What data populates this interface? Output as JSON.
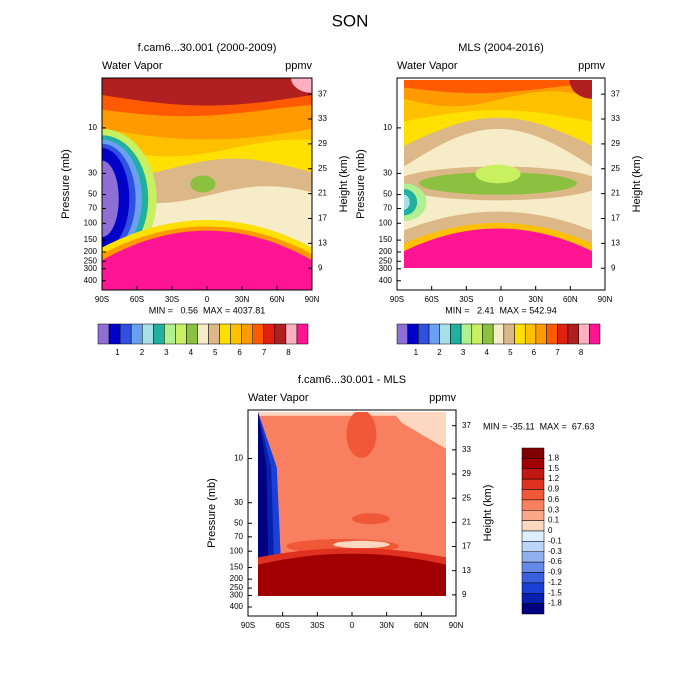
{
  "page_title": "SON",
  "chart_data": [
    {
      "type": "contour",
      "title": "f.cam6...30.001 (2000-2009)",
      "left_string": "Water Vapor",
      "right_string": "ppmv",
      "ylabel": "Pressure (mb)",
      "y2label": "Height (km)",
      "xlim": [
        -90,
        90
      ],
      "xticks": [
        {
          "value": -90,
          "label": "90S"
        },
        {
          "value": -60,
          "label": "60S"
        },
        {
          "value": -30,
          "label": "30S"
        },
        0,
        {
          "value": 30,
          "label": "30N"
        },
        {
          "value": 60,
          "label": "60N"
        },
        {
          "value": 90,
          "label": "90N"
        }
      ],
      "ylim": [
        500,
        3
      ],
      "log_y": true,
      "yticks": [
        10,
        30,
        50,
        70,
        100,
        150,
        200,
        250,
        300,
        400
      ],
      "y2lim": [
        5.5,
        39.6
      ],
      "y2ticks": [
        37,
        33,
        29,
        25,
        21,
        17,
        13,
        9
      ],
      "stats": "MIN =   0.56  MAX = 4037.81",
      "colorbar": {
        "orientation": "horizontal",
        "colors": [
          "#8e6fd6",
          "#0000c8",
          "#3050e0",
          "#6aa0f0",
          "#a8e0e8",
          "#20b0a0",
          "#b0f090",
          "#c8f060",
          "#8cc040",
          "#f6ecc8",
          "#dcb888",
          "#ffe000",
          "#ffc000",
          "#ff9a00",
          "#ff5a00",
          "#e02010",
          "#b02020",
          "#ffb0c0",
          "#ff1493"
        ],
        "labels": [
          1,
          2,
          3,
          4,
          5,
          6,
          7,
          8
        ]
      }
    },
    {
      "type": "contour",
      "title": "MLS (2004-2016)",
      "left_string": "Water Vapor",
      "right_string": "ppmv",
      "ylabel": "Pressure (mb)",
      "y2label": "Height (km)",
      "xlim": [
        -90,
        90
      ],
      "xticks": [
        {
          "value": -90,
          "label": "90S"
        },
        {
          "value": -60,
          "label": "60S"
        },
        {
          "value": -30,
          "label": "30S"
        },
        0,
        {
          "value": 30,
          "label": "30N"
        },
        {
          "value": 60,
          "label": "60N"
        },
        {
          "value": 90,
          "label": "90N"
        }
      ],
      "ylim": [
        500,
        3
      ],
      "log_y": true,
      "yticks": [
        10,
        30,
        50,
        70,
        100,
        150,
        200,
        250,
        300,
        400
      ],
      "y2lim": [
        5.5,
        39.6
      ],
      "y2ticks": [
        37,
        33,
        29,
        25,
        21,
        17,
        13,
        9
      ],
      "stats": "MIN =   2.41  MAX = 542.94",
      "colorbar": {
        "orientation": "horizontal",
        "colors": [
          "#8e6fd6",
          "#0000c8",
          "#3050e0",
          "#6aa0f0",
          "#a8e0e8",
          "#20b0a0",
          "#b0f090",
          "#c8f060",
          "#8cc040",
          "#f6ecc8",
          "#dcb888",
          "#ffe000",
          "#ffc000",
          "#ff9a00",
          "#ff5a00",
          "#e02010",
          "#b02020",
          "#ffb0c0",
          "#ff1493"
        ],
        "labels": [
          1,
          2,
          3,
          4,
          5,
          6,
          7,
          8
        ]
      }
    },
    {
      "type": "contour",
      "title": "f.cam6...30.001 - MLS",
      "left_string": "Water Vapor",
      "right_string": "ppmv",
      "ylabel": "Pressure (mb)",
      "y2label": "Height (km)",
      "xlim": [
        -90,
        90
      ],
      "xticks": [
        {
          "value": -90,
          "label": "90S"
        },
        {
          "value": -60,
          "label": "60S"
        },
        {
          "value": -30,
          "label": "30S"
        },
        0,
        {
          "value": 30,
          "label": "30N"
        },
        {
          "value": 60,
          "label": "60N"
        },
        {
          "value": 90,
          "label": "90N"
        }
      ],
      "ylim": [
        500,
        3
      ],
      "log_y": true,
      "yticks": [
        10,
        30,
        50,
        70,
        100,
        150,
        200,
        250,
        300,
        400
      ],
      "y2lim": [
        5.5,
        39.6
      ],
      "y2ticks": [
        37,
        33,
        29,
        25,
        21,
        17,
        13,
        9
      ],
      "stats": "MIN = -35.11  MAX =  67.63",
      "colorbar": {
        "orientation": "vertical",
        "colors": [
          "#800000",
          "#a00000",
          "#c01810",
          "#e03020",
          "#f05838",
          "#f88060",
          "#f8a888",
          "#fcd8c0",
          "#ddeeff",
          "#bcd4f8",
          "#90b0f0",
          "#6688e8",
          "#3a60e0",
          "#1a40d8",
          "#0820b0",
          "#000080"
        ],
        "labels": [
          1.8,
          1.5,
          1.2,
          0.9,
          0.6,
          0.3,
          0.1,
          0,
          -0.1,
          -0.3,
          -0.6,
          -0.9,
          -1.2,
          -1.5,
          -1.8
        ]
      }
    }
  ]
}
